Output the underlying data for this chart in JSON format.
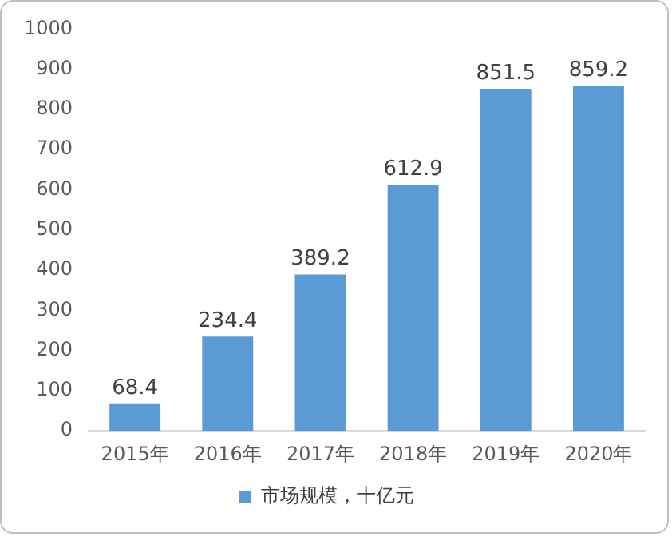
{
  "chart_data": {
    "type": "bar",
    "categories": [
      "2015年",
      "2016年",
      "2017年",
      "2018年",
      "2019年",
      "2020年"
    ],
    "series": [
      {
        "name": "市场规模，十亿元",
        "color": "#5b9bd5",
        "values": [
          68.4,
          234.4,
          389.2,
          612.9,
          851.5,
          859.2
        ]
      }
    ],
    "ylim": [
      0,
      1000
    ],
    "yticks": [
      0,
      100,
      200,
      300,
      400,
      500,
      600,
      700,
      800,
      900,
      1000
    ],
    "grid": false,
    "legend": "bottom",
    "data_labels": true
  }
}
